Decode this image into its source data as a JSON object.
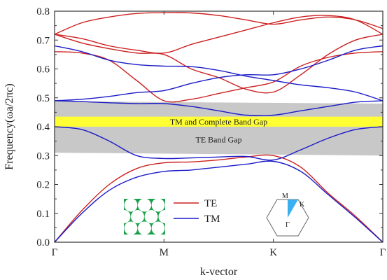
{
  "chart_data": {
    "type": "line",
    "xlabel": "k-vector",
    "ylabel": "Frequency(ωa/2πc)",
    "x_ticks": [
      "Γ",
      "M",
      "K",
      "Γ"
    ],
    "ylim": [
      0.0,
      0.8
    ],
    "y_ticks": [
      "0.0",
      "0.1",
      "0.2",
      "0.3",
      "0.4",
      "0.5",
      "0.6",
      "0.7",
      "0.8"
    ],
    "legend": {
      "position": "bottom-center",
      "entries": [
        "TE",
        "TM"
      ]
    },
    "colors": {
      "TE": "#cc2020",
      "TM": "#1a1ac8",
      "te_gap": "#c8c8c8",
      "complete_gap": "#ffff33",
      "inset_green": "#1aa04a",
      "bz_wedge": "#3ab0f0"
    },
    "band_gaps": [
      {
        "label": "TE Band Gap",
        "start": [
          0.31,
          0.488
        ],
        "end": [
          0.3,
          0.48
        ]
      },
      {
        "label": "TM and Complete Band Gap",
        "start": [
          0.4,
          0.435
        ],
        "end": [
          0.4,
          0.435
        ]
      }
    ],
    "brillouin_zone_labels": [
      "M",
      "K",
      "Γ"
    ],
    "series": [
      {
        "name": "TE",
        "bands": [
          {
            "x": [
              0,
              0.25,
              0.5,
              0.75,
              1,
              1.25,
              1.5,
              1.75,
              2,
              2.25,
              2.5,
              2.75,
              3
            ],
            "y": [
              0.0,
              0.11,
              0.2,
              0.255,
              0.275,
              0.278,
              0.285,
              0.295,
              0.3,
              0.26,
              0.17,
              0.09,
              0.0
            ]
          },
          {
            "x": [
              0,
              0.25,
              0.5,
              0.75,
              1,
              1.25,
              1.5,
              1.75,
              2,
              2.25,
              2.5,
              2.75,
              3
            ],
            "y": [
              0.66,
              0.655,
              0.63,
              0.56,
              0.49,
              0.495,
              0.515,
              0.535,
              0.555,
              0.61,
              0.64,
              0.655,
              0.66
            ]
          },
          {
            "x": [
              0,
              0.25,
              0.5,
              0.75,
              1,
              1.25,
              1.5,
              1.75,
              2,
              2.25,
              2.5,
              2.75,
              3
            ],
            "y": [
              0.72,
              0.69,
              0.67,
              0.655,
              0.65,
              0.6,
              0.57,
              0.53,
              0.52,
              0.58,
              0.65,
              0.7,
              0.72
            ]
          },
          {
            "x": [
              0,
              0.25,
              0.5,
              0.75,
              1,
              1.25,
              1.5,
              1.75,
              2,
              2.25,
              2.5,
              2.75,
              3
            ],
            "y": [
              0.72,
              0.705,
              0.68,
              0.665,
              0.655,
              0.685,
              0.71,
              0.735,
              0.76,
              0.78,
              0.785,
              0.77,
              0.72
            ]
          },
          {
            "x": [
              0,
              0.25,
              0.5,
              0.75,
              1,
              1.25,
              1.5,
              1.75,
              2,
              2.25,
              2.5,
              2.75,
              3
            ],
            "y": [
              0.72,
              0.76,
              0.78,
              0.792,
              0.795,
              0.794,
              0.785,
              0.77,
              0.755,
              0.77,
              0.78,
              0.77,
              0.74
            ]
          }
        ]
      },
      {
        "name": "TM",
        "bands": [
          {
            "x": [
              0,
              0.25,
              0.5,
              0.75,
              1,
              1.25,
              1.5,
              1.75,
              2,
              2.25,
              2.5,
              2.75,
              3
            ],
            "y": [
              0.0,
              0.1,
              0.18,
              0.225,
              0.245,
              0.25,
              0.26,
              0.27,
              0.28,
              0.245,
              0.165,
              0.085,
              0.0
            ]
          },
          {
            "x": [
              0,
              0.25,
              0.5,
              0.75,
              1,
              1.25,
              1.5,
              1.75,
              2,
              2.25,
              2.5,
              2.75,
              3
            ],
            "y": [
              0.4,
              0.39,
              0.35,
              0.3,
              0.29,
              0.292,
              0.295,
              0.297,
              0.285,
              0.32,
              0.36,
              0.39,
              0.4
            ]
          },
          {
            "x": [
              0,
              0.25,
              0.5,
              0.75,
              1,
              1.25,
              1.5,
              1.75,
              2,
              2.25,
              2.5,
              2.75,
              3
            ],
            "y": [
              0.49,
              0.487,
              0.483,
              0.48,
              0.48,
              0.47,
              0.455,
              0.44,
              0.44,
              0.455,
              0.47,
              0.485,
              0.49
            ]
          },
          {
            "x": [
              0,
              0.25,
              0.5,
              0.75,
              1,
              1.25,
              1.5,
              1.75,
              2,
              2.25,
              2.5,
              2.75,
              3
            ],
            "y": [
              0.49,
              0.495,
              0.505,
              0.518,
              0.525,
              0.55,
              0.57,
              0.58,
              0.58,
              0.6,
              0.63,
              0.665,
              0.68
            ]
          },
          {
            "x": [
              0,
              0.25,
              0.5,
              0.75,
              1,
              1.25,
              1.5,
              1.75,
              2,
              2.25,
              2.5,
              2.75,
              3
            ],
            "y": [
              0.68,
              0.66,
              0.63,
              0.615,
              0.61,
              0.608,
              0.595,
              0.575,
              0.56,
              0.545,
              0.535,
              0.52,
              0.49
            ]
          }
        ]
      }
    ]
  }
}
